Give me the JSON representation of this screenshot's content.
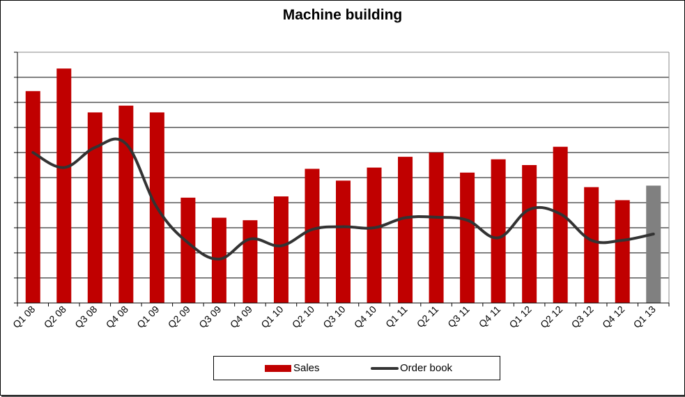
{
  "chart_data": {
    "type": "bar",
    "title": "Machine building",
    "categories": [
      "Q1 08",
      "Q2 08",
      "Q3 08",
      "Q4 08",
      "Q1 09",
      "Q2 09",
      "Q3 09",
      "Q4 09",
      "Q1 10",
      "Q2 10",
      "Q3 10",
      "Q4 10",
      "Q1 11",
      "Q2 11",
      "Q3 11",
      "Q4 11",
      "Q1 12",
      "Q2 12",
      "Q3 12",
      "Q4 12",
      "Q1 13"
    ],
    "series": [
      {
        "name": "Sales",
        "kind": "bar",
        "color": "#C00000",
        "highlight_last_color": "#808080",
        "values": [
          8.45,
          9.35,
          7.6,
          7.87,
          7.6,
          4.2,
          3.4,
          3.3,
          4.25,
          5.35,
          4.88,
          5.4,
          5.83,
          6.0,
          5.2,
          5.73,
          5.5,
          6.23,
          4.62,
          4.1,
          4.68
        ]
      },
      {
        "name": "Order book",
        "kind": "line",
        "color": "#333333",
        "values": [
          6.0,
          5.4,
          6.2,
          6.35,
          3.8,
          2.4,
          1.75,
          2.55,
          2.28,
          2.93,
          3.04,
          3.0,
          3.4,
          3.42,
          3.3,
          2.6,
          3.73,
          3.55,
          2.5,
          2.5,
          2.75
        ]
      }
    ],
    "ylim": [
      0,
      10
    ],
    "y_gridlines": 10,
    "y_tick_labels_shown": false,
    "grid": true,
    "legend_position": "bottom"
  }
}
